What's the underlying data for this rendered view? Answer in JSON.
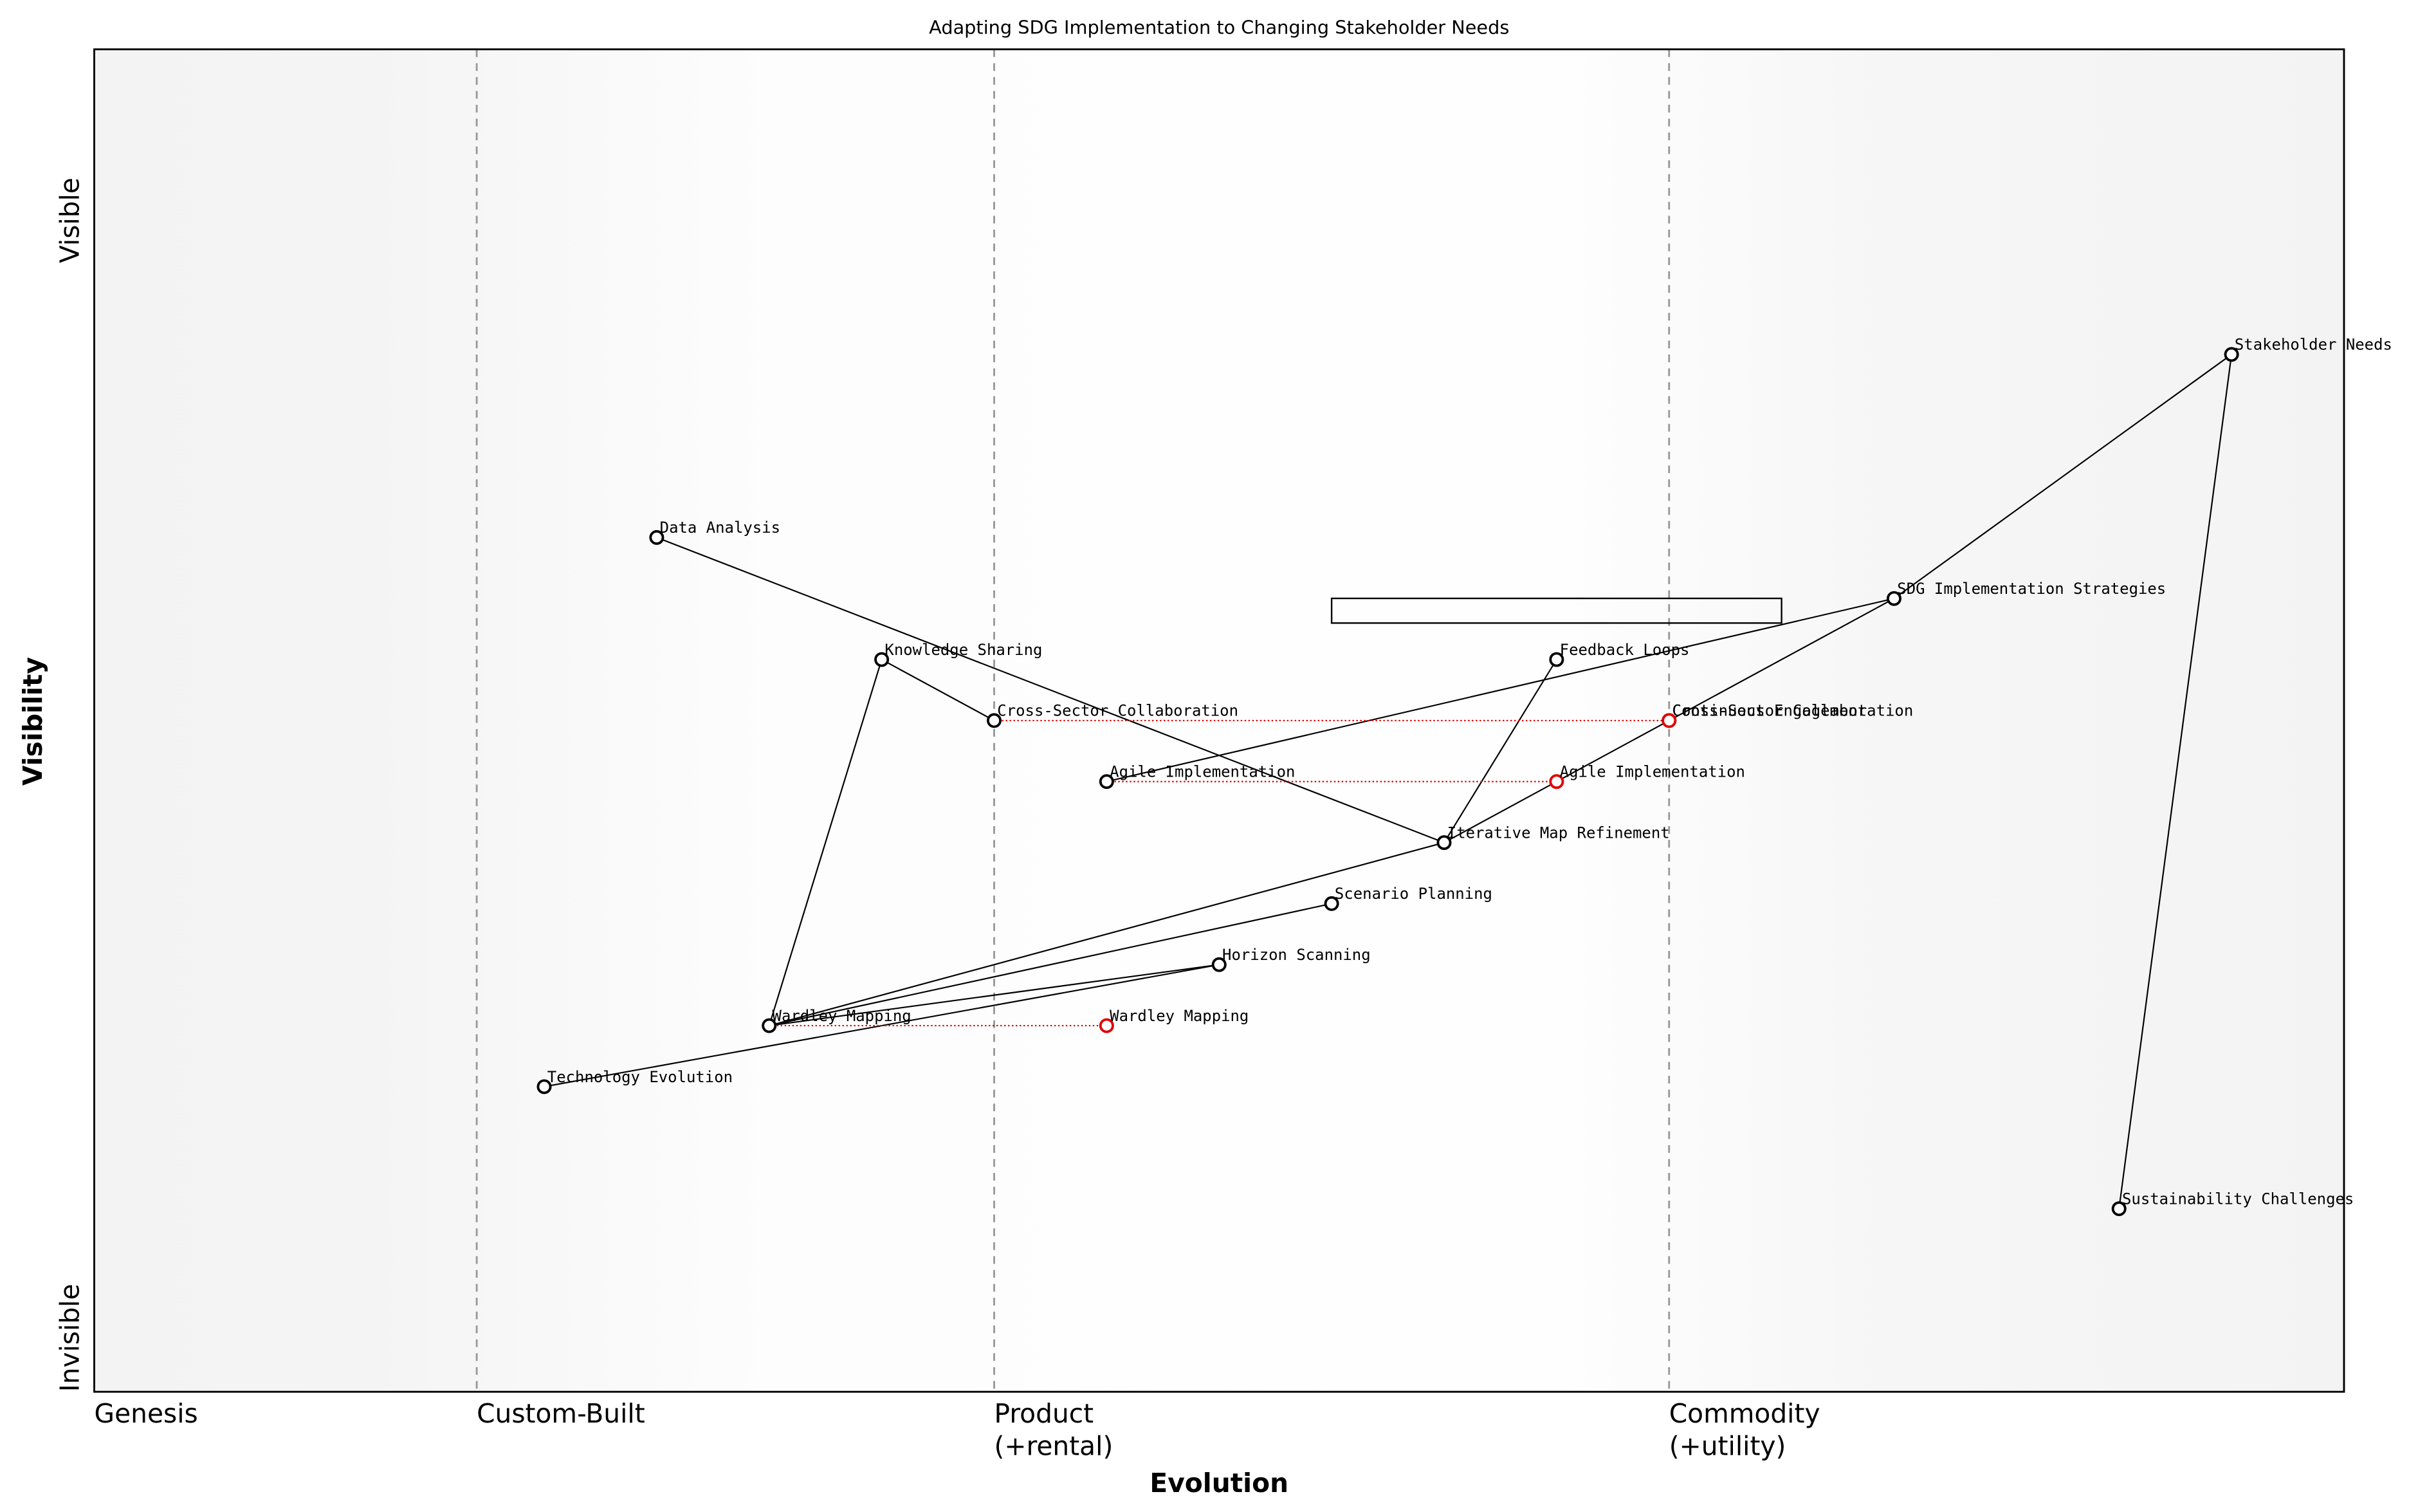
{
  "chart_data": {
    "type": "wardley",
    "title": "Adapting SDG Implementation to Changing Stakeholder Needs",
    "x_label": "Evolution",
    "y_label": "Visibility",
    "y_top_label": "Visible",
    "y_bottom_label": "Invisible",
    "xlim": [
      0,
      1
    ],
    "ylim": [
      0,
      1.1
    ],
    "stages": [
      {
        "value": 0,
        "label": [
          "Genesis"
        ]
      },
      {
        "value": 0.17,
        "label": [
          "Custom-Built"
        ]
      },
      {
        "value": 0.4,
        "label": [
          "Product",
          "(+rental)"
        ]
      },
      {
        "value": 0.7,
        "label": [
          "Commodity",
          "(+utility)"
        ]
      }
    ],
    "nodes": [
      {
        "name": "Stakeholder Needs",
        "x": 0.95,
        "y": 0.85
      },
      {
        "name": "SDG Implementation Strategies",
        "x": 0.8,
        "y": 0.65
      },
      {
        "name": "Sustainability Challenges",
        "x": 0.9,
        "y": 0.15
      },
      {
        "name": "Data Analysis",
        "x": 0.25,
        "y": 0.7
      },
      {
        "name": "Knowledge Sharing",
        "x": 0.35,
        "y": 0.6
      },
      {
        "name": "Feedback Loops",
        "x": 0.65,
        "y": 0.6
      },
      {
        "name": "Cross-Sector Collaboration",
        "x": 0.4,
        "y": 0.55
      },
      {
        "name": "Continuous Engagement",
        "x": 0.7,
        "y": 0.55
      },
      {
        "name": "Agile Implementation",
        "x": 0.45,
        "y": 0.5
      },
      {
        "name": "Iterative Map Refinement",
        "x": 0.6,
        "y": 0.45
      },
      {
        "name": "Scenario Planning",
        "x": 0.55,
        "y": 0.4
      },
      {
        "name": "Horizon Scanning",
        "x": 0.5,
        "y": 0.35
      },
      {
        "name": "Wardley Mapping",
        "x": 0.3,
        "y": 0.3
      },
      {
        "name": "Technology Evolution",
        "x": 0.2,
        "y": 0.25
      }
    ],
    "links": [
      [
        "Stakeholder Needs",
        "SDG Implementation Strategies"
      ],
      [
        "Stakeholder Needs",
        "Sustainability Challenges"
      ],
      [
        "SDG Implementation Strategies",
        "Agile Implementation"
      ],
      [
        "SDG Implementation Strategies",
        "Continuous Engagement"
      ],
      [
        "Continuous Engagement",
        "Iterative Map Refinement"
      ],
      [
        "Feedback Loops",
        "Iterative Map Refinement"
      ],
      [
        "Data Analysis",
        "Iterative Map Refinement"
      ],
      [
        "Iterative Map Refinement",
        "Wardley Mapping"
      ],
      [
        "Knowledge Sharing",
        "Cross-Sector Collaboration"
      ],
      [
        "Knowledge Sharing",
        "Wardley Mapping"
      ],
      [
        "Wardley Mapping",
        "Scenario Planning"
      ],
      [
        "Wardley Mapping",
        "Horizon Scanning"
      ],
      [
        "Horizon Scanning",
        "Technology Evolution"
      ]
    ],
    "evolutions": [
      {
        "name": "Cross-Sector Collaboration",
        "x": 0.7
      },
      {
        "name": "Agile Implementation",
        "x": 0.65
      },
      {
        "name": "Wardley Mapping",
        "x": 0.45
      }
    ],
    "pipeline": {
      "x": [
        0.55,
        0.75
      ],
      "y": 0.64
    },
    "colors": {
      "node": "#000000",
      "evolved": "#e00000"
    }
  }
}
